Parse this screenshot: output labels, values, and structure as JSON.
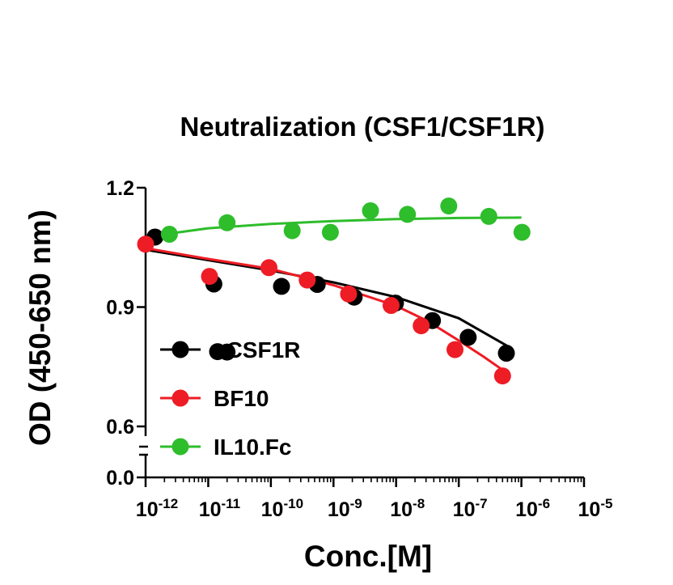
{
  "chart_data": {
    "type": "scatter",
    "title": "Neutralization (CSF1/CSF1R)",
    "xlabel": "Conc.[M]",
    "ylabel": "OD (450-650 nm)",
    "x_scale": "log",
    "x_exp_range": [
      -12,
      -5
    ],
    "y_segments": [
      [
        0,
        0.05
      ],
      [
        0.6,
        1.2
      ]
    ],
    "yticks": [
      {
        "v": 0.0,
        "label": "0.0"
      },
      {
        "v": 0.6,
        "label": "0.6"
      },
      {
        "v": 0.9,
        "label": "0.9"
      },
      {
        "v": 1.2,
        "label": "1.2"
      }
    ],
    "xticks": [
      {
        "exp": -12,
        "base": "10",
        "sup": "-12"
      },
      {
        "exp": -11,
        "base": "10",
        "sup": "-11"
      },
      {
        "exp": -10,
        "base": "10",
        "sup": "-10"
      },
      {
        "exp": -9,
        "base": "10",
        "sup": "-9"
      },
      {
        "exp": -8,
        "base": "10",
        "sup": "-8"
      },
      {
        "exp": -7,
        "base": "10",
        "sup": "-7"
      },
      {
        "exp": -6,
        "base": "10",
        "sup": "-6"
      },
      {
        "exp": -5,
        "base": "10",
        "sup": "-5"
      }
    ],
    "legend_position": "bottom-left",
    "series": [
      {
        "name": "aCSF1R",
        "color": "#000000",
        "points": [
          [
            -11.85,
            1.076
          ],
          [
            -10.91,
            0.958
          ],
          [
            -10.85,
            0.788
          ],
          [
            -10.7,
            0.787
          ],
          [
            -9.83,
            0.952
          ],
          [
            -9.26,
            0.957
          ],
          [
            -8.67,
            0.925
          ],
          [
            -8.01,
            0.91
          ],
          [
            -7.42,
            0.866
          ],
          [
            -6.85,
            0.824
          ],
          [
            -6.24,
            0.784
          ]
        ],
        "curve": [
          [
            -12,
            1.044
          ],
          [
            -11,
            1.018
          ],
          [
            -10,
            0.992
          ],
          [
            -9,
            0.962
          ],
          [
            -8,
            0.925
          ],
          [
            -7,
            0.872
          ],
          [
            -6.2,
            0.8
          ]
        ]
      },
      {
        "name": "BF10",
        "color": "#ee1c25",
        "points": [
          [
            -12.0,
            1.058
          ],
          [
            -10.98,
            0.977
          ],
          [
            -10.03,
            0.999
          ],
          [
            -9.42,
            0.968
          ],
          [
            -8.76,
            0.933
          ],
          [
            -8.08,
            0.904
          ],
          [
            -7.6,
            0.853
          ],
          [
            -7.06,
            0.793
          ],
          [
            -6.3,
            0.727
          ]
        ],
        "curve": [
          [
            -12,
            1.048
          ],
          [
            -11,
            1.021
          ],
          [
            -10,
            0.996
          ],
          [
            -9,
            0.955
          ],
          [
            -8,
            0.903
          ],
          [
            -7.5,
            0.865
          ],
          [
            -7,
            0.816
          ],
          [
            -6.6,
            0.775
          ],
          [
            -6.3,
            0.742
          ]
        ]
      },
      {
        "name": "IL10.Fc",
        "color": "#2ebd2b",
        "points": [
          [
            -11.62,
            1.083
          ],
          [
            -10.7,
            1.112
          ],
          [
            -9.66,
            1.092
          ],
          [
            -9.05,
            1.088
          ],
          [
            -8.41,
            1.142
          ],
          [
            -7.82,
            1.133
          ],
          [
            -7.16,
            1.154
          ],
          [
            -6.52,
            1.128
          ],
          [
            -5.99,
            1.088
          ]
        ],
        "curve": [
          [
            -11.65,
            1.084
          ],
          [
            -11,
            1.098
          ],
          [
            -10,
            1.109
          ],
          [
            -9,
            1.116
          ],
          [
            -8,
            1.121
          ],
          [
            -7,
            1.124
          ],
          [
            -6,
            1.125
          ]
        ]
      }
    ]
  }
}
